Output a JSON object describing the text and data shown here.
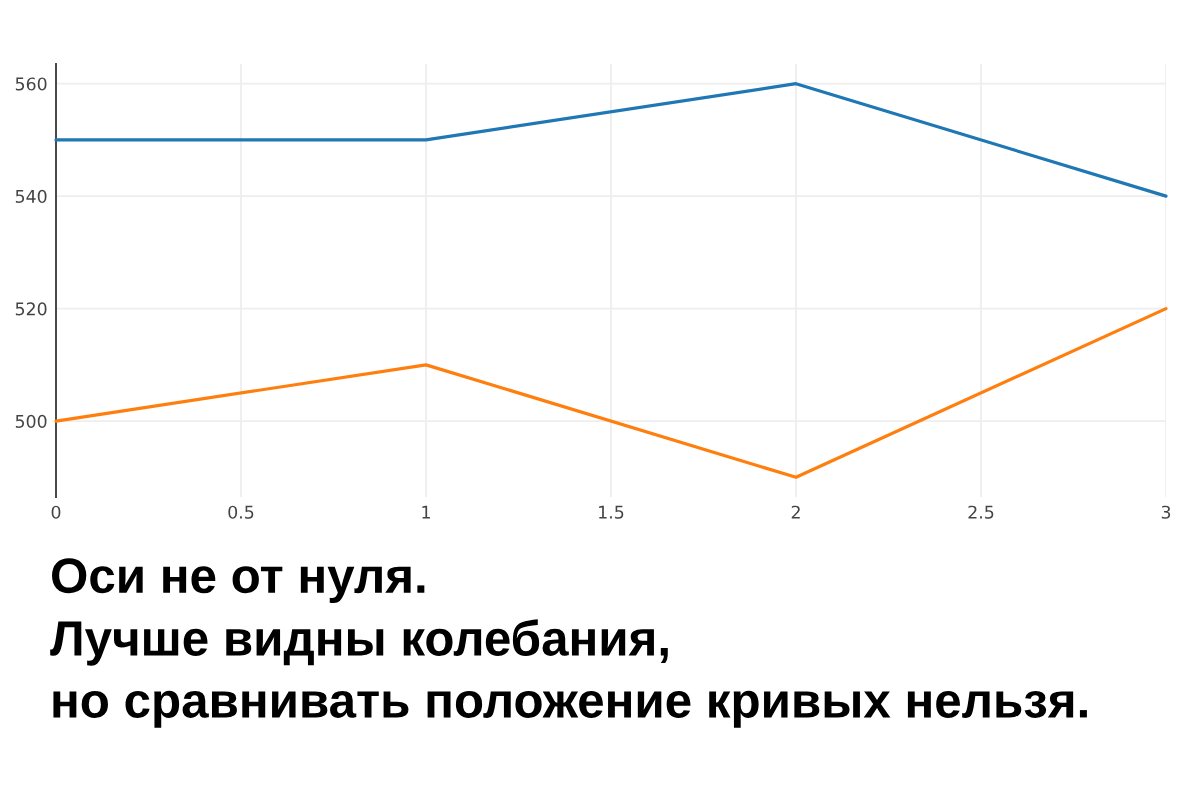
{
  "chart_data": {
    "type": "line",
    "title": "Оси не от нуля.\nЛучше видны колебания,\nно сравнивать положение кривых нельзя.",
    "x": [
      0,
      1,
      2,
      3
    ],
    "series": [
      {
        "color": "#1f77b4",
        "values": [
          550,
          550,
          560,
          540
        ]
      },
      {
        "color": "#ff7f0e",
        "values": [
          500,
          510,
          490,
          520
        ]
      }
    ],
    "xlim": [
      0,
      3
    ],
    "xticks": [
      0,
      0.5,
      1,
      1.5,
      2,
      2.5,
      3
    ],
    "ylim": [
      486.5,
      563.5
    ],
    "yticks": [
      500,
      520,
      540,
      560
    ],
    "grid": true,
    "marker": "none",
    "line_style": "solid"
  }
}
